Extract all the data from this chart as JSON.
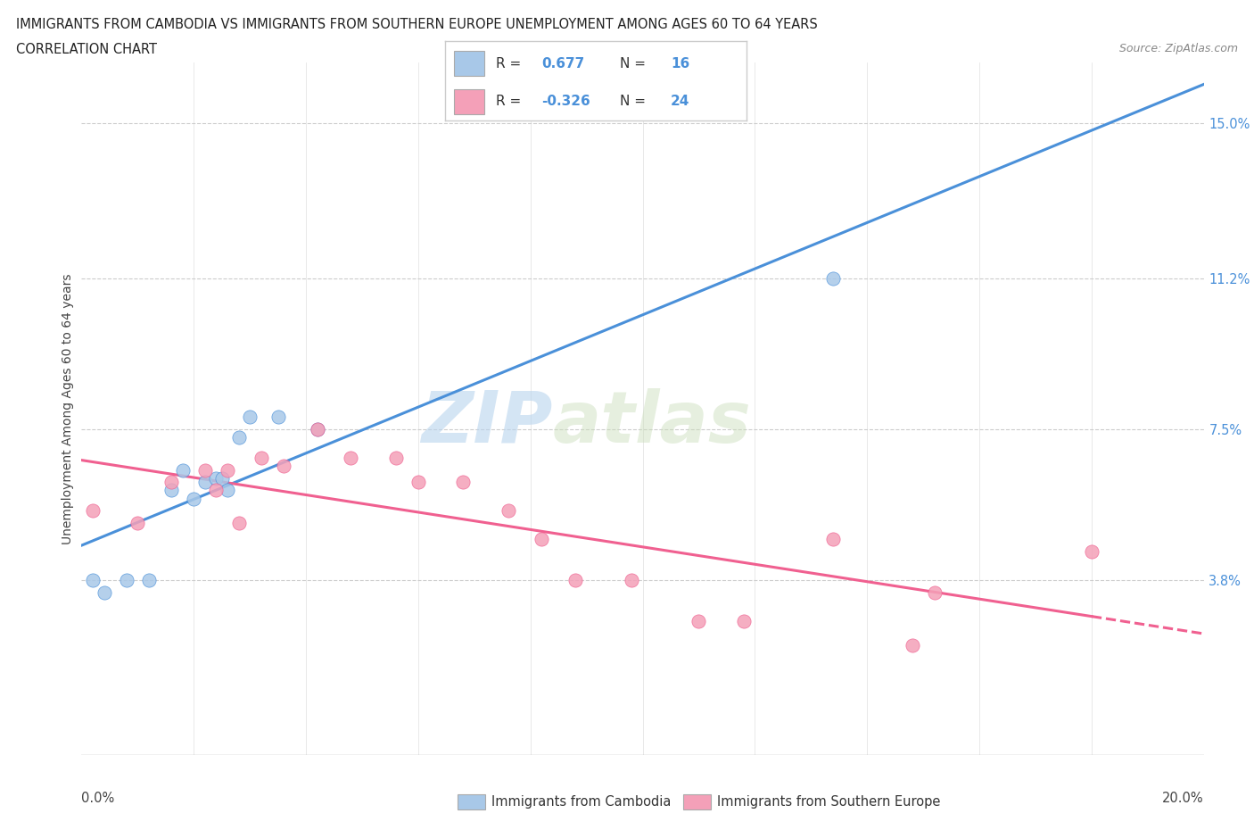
{
  "title_line1": "IMMIGRANTS FROM CAMBODIA VS IMMIGRANTS FROM SOUTHERN EUROPE UNEMPLOYMENT AMONG AGES 60 TO 64 YEARS",
  "title_line2": "CORRELATION CHART",
  "source_text": "Source: ZipAtlas.com",
  "ylabel": "Unemployment Among Ages 60 to 64 years",
  "yticks": [
    3.8,
    7.5,
    11.2,
    15.0
  ],
  "xlim": [
    0.0,
    0.2
  ],
  "ylim": [
    -0.005,
    0.165
  ],
  "cambodia_color": "#a8c8e8",
  "southern_europe_color": "#f4a0b8",
  "cambodia_line_color": "#4a90d9",
  "southern_europe_line_color": "#f06090",
  "cambodia_R": 0.677,
  "cambodia_N": 16,
  "southern_europe_R": -0.326,
  "southern_europe_N": 24,
  "cambodia_x": [
    0.002,
    0.004,
    0.008,
    0.012,
    0.016,
    0.018,
    0.02,
    0.022,
    0.024,
    0.025,
    0.026,
    0.028,
    0.03,
    0.035,
    0.042,
    0.134
  ],
  "cambodia_y": [
    0.038,
    0.035,
    0.038,
    0.038,
    0.06,
    0.065,
    0.058,
    0.062,
    0.063,
    0.063,
    0.06,
    0.073,
    0.078,
    0.078,
    0.075,
    0.112
  ],
  "southern_europe_x": [
    0.002,
    0.01,
    0.016,
    0.022,
    0.024,
    0.026,
    0.028,
    0.032,
    0.036,
    0.042,
    0.048,
    0.056,
    0.06,
    0.068,
    0.076,
    0.082,
    0.088,
    0.098,
    0.11,
    0.118,
    0.134,
    0.148,
    0.152,
    0.18
  ],
  "southern_europe_y": [
    0.055,
    0.052,
    0.062,
    0.065,
    0.06,
    0.065,
    0.052,
    0.068,
    0.066,
    0.075,
    0.068,
    0.068,
    0.062,
    0.062,
    0.055,
    0.048,
    0.038,
    0.038,
    0.028,
    0.028,
    0.048,
    0.022,
    0.035,
    0.045
  ],
  "watermark_zip": "ZIP",
  "watermark_atlas": "atlas",
  "background_color": "#ffffff",
  "grid_color": "#cccccc",
  "legend_label1": "Immigrants from Cambodia",
  "legend_label2": "Immigrants from Southern Europe"
}
